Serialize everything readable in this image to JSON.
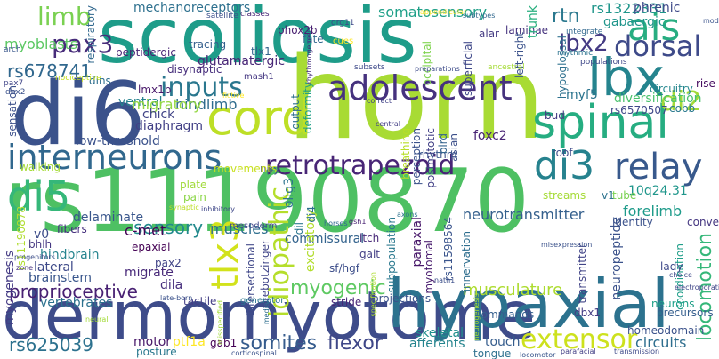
{
  "words": [
    {
      "text": "rs11190870",
      "color": "#4ec063"
    },
    {
      "text": "scoliosis",
      "color": "#1e9c89"
    },
    {
      "text": "horn",
      "color": "#a8db34"
    },
    {
      "text": "dermomyotome",
      "color": "#3e4c8a"
    },
    {
      "text": "hypaxial",
      "color": "#2c728e"
    },
    {
      "text": "di6",
      "color": "#3b528b"
    },
    {
      "text": "interneurons",
      "color": "#31688e"
    },
    {
      "text": "adolescent",
      "color": "#46327e"
    },
    {
      "text": "cord",
      "color": "#bddf26"
    },
    {
      "text": "spinal",
      "color": "#26ad81"
    },
    {
      "text": "lbx",
      "color": "#25848e"
    },
    {
      "text": "ais",
      "color": "#27ad81"
    },
    {
      "text": "relay",
      "color": "#38598c"
    },
    {
      "text": "di5",
      "color": "#35b779"
    },
    {
      "text": "di3",
      "color": "#26828e"
    },
    {
      "text": "retrotrapezoid",
      "color": "#482576"
    },
    {
      "text": "inputs",
      "color": "#2a778e"
    },
    {
      "text": "dorsal",
      "color": "#3e4a89"
    },
    {
      "text": "tlx3",
      "color": "#d2e21b"
    },
    {
      "text": "pax3",
      "color": "#472c7a"
    },
    {
      "text": "limb",
      "color": "#7ad151"
    },
    {
      "text": "idiopathic",
      "color": "#b5de2b"
    },
    {
      "text": "extensor",
      "color": "#cde11d"
    },
    {
      "text": "di2",
      "color": "#a2da37"
    },
    {
      "text": "lbx2",
      "color": "#443a83"
    },
    {
      "text": "myogenic",
      "color": "#5ec962"
    },
    {
      "text": "proprioceptive",
      "color": "#482173"
    },
    {
      "text": "somites",
      "color": "#365c8d"
    },
    {
      "text": "flexor",
      "color": "#3f4788"
    },
    {
      "text": "locomotion",
      "color": "#35b779"
    },
    {
      "text": "rs678741",
      "color": "#31688e"
    },
    {
      "text": "rs625039",
      "color": "#2c718e"
    },
    {
      "text": "sensory",
      "color": "#238a8d"
    },
    {
      "text": "rtn",
      "color": "#2a788e"
    },
    {
      "text": "mechanoreceptors",
      "color": "#2d708e"
    },
    {
      "text": "somatosensory",
      "color": "#1fa088"
    },
    {
      "text": "rs1322331",
      "color": "#1f968b"
    },
    {
      "text": "phrenic",
      "color": "#3e4989"
    },
    {
      "text": "gabaergic",
      "color": "#1f958b"
    },
    {
      "text": "musculature",
      "color": "#addc30"
    },
    {
      "text": "commissural",
      "color": "#33638d"
    },
    {
      "text": "hindlimb",
      "color": "#2f6c8e"
    },
    {
      "text": "neurotransmitter",
      "color": "#35608d"
    },
    {
      "text": "forelimb",
      "color": "#1e9b8a"
    },
    {
      "text": "delaminate",
      "color": "#39568c"
    },
    {
      "text": "c-met",
      "color": "#440154"
    },
    {
      "text": "myoblasts",
      "color": "#5cc863"
    },
    {
      "text": "ventral",
      "color": "#26828e"
    },
    {
      "text": "migratory",
      "color": "#93d741"
    },
    {
      "text": "glutamatergic",
      "color": "#482677"
    },
    {
      "text": "low-threshold",
      "color": "#3b528b"
    },
    {
      "text": "diaphragm",
      "color": "#424086"
    },
    {
      "text": "chick",
      "color": "#414487"
    },
    {
      "text": "muscles",
      "color": "#2e6e8e"
    },
    {
      "text": "lmx1b",
      "color": "#48186a"
    },
    {
      "text": "dins",
      "color": "#2e6f8e"
    },
    {
      "text": "circuits",
      "color": "#2e6e8e"
    },
    {
      "text": "touch",
      "color": "#365d8d"
    },
    {
      "text": "skeletal",
      "color": "#21908d"
    },
    {
      "text": "afferents",
      "color": "#25848e"
    },
    {
      "text": "motor",
      "color": "#481769"
    },
    {
      "text": "posture",
      "color": "#2a788e"
    },
    {
      "text": "ptf1a",
      "color": "#fde725"
    },
    {
      "text": "gab1",
      "color": "#440154"
    },
    {
      "text": "vertebrates",
      "color": "#2c718e"
    },
    {
      "text": "tactile",
      "color": "#433e85"
    },
    {
      "text": "brainstem",
      "color": "#39568c"
    },
    {
      "text": "lateral",
      "color": "#3e4a89"
    },
    {
      "text": "hindbrain",
      "color": "#25848e"
    },
    {
      "text": "bhlh",
      "color": "#453781"
    },
    {
      "text": "v0",
      "color": "#3d4d8a"
    },
    {
      "text": "pax2",
      "color": "#414487"
    },
    {
      "text": "migrate",
      "color": "#482979"
    },
    {
      "text": "dila",
      "color": "#472f7d"
    },
    {
      "text": "epaxial",
      "color": "#440154"
    },
    {
      "text": "projections",
      "color": "#3b528b"
    },
    {
      "text": "commands",
      "color": "#355f8d"
    },
    {
      "text": "neurons",
      "color": "#1fa088"
    },
    {
      "text": "precursors",
      "color": "#355e8d"
    },
    {
      "text": "dbx1",
      "color": "#433d84"
    },
    {
      "text": "homeodomain",
      "color": "#3b528b"
    },
    {
      "text": "tongue",
      "color": "#2d708e"
    },
    {
      "text": "stride",
      "color": "#482677"
    },
    {
      "text": "transmitter",
      "color": "#414487"
    },
    {
      "text": "neuropeptide",
      "color": "#3b528b"
    },
    {
      "text": "coordination",
      "color": "#1f9e89"
    },
    {
      "text": "lady",
      "color": "#3e4989"
    },
    {
      "text": "identity",
      "color": "#3b528b"
    },
    {
      "text": "convey",
      "color": "#453781"
    },
    {
      "text": "10q24.31",
      "color": "#1f968b"
    },
    {
      "text": "v1",
      "color": "#2c728e"
    },
    {
      "text": "tube",
      "color": "#7ad151"
    },
    {
      "text": "cobb",
      "color": "#29798e"
    },
    {
      "text": "rs6570507",
      "color": "#3f4889"
    },
    {
      "text": "diversification",
      "color": "#4ac16d"
    },
    {
      "text": "circuitry",
      "color": "#24878e"
    },
    {
      "text": "myf5",
      "color": "#2b748e"
    },
    {
      "text": "bud",
      "color": "#443983"
    },
    {
      "text": "foxc2",
      "color": "#482475"
    },
    {
      "text": "rhythm",
      "color": "#3a548c"
    },
    {
      "text": "gait",
      "color": "#433e85"
    },
    {
      "text": "itch",
      "color": "#482878"
    },
    {
      "text": "olig3",
      "color": "#2c738e"
    },
    {
      "text": "sf/hgf",
      "color": "#3d4e8a"
    },
    {
      "text": "excitatory",
      "color": "#b2dd2d"
    },
    {
      "text": "di4",
      "color": "#2d718e"
    },
    {
      "text": "dil",
      "color": "#2a768e"
    },
    {
      "text": "prebotzinger",
      "color": "#404588"
    },
    {
      "text": "intersectional",
      "color": "#3f4788"
    },
    {
      "text": "generator",
      "color": "#2b758e"
    },
    {
      "text": "mesoderm",
      "color": "#3f4889"
    },
    {
      "text": "fibers",
      "color": "#46307e"
    },
    {
      "text": "myogenesis",
      "color": "#443b84"
    },
    {
      "text": "rs11190878",
      "color": "#b0dd2f"
    },
    {
      "text": "rs11598564",
      "color": "#3a548c"
    },
    {
      "text": "npy",
      "color": "#3e4989"
    },
    {
      "text": "movements",
      "color": "#c8e020"
    },
    {
      "text": "plate",
      "color": "#a0da39"
    },
    {
      "text": "pain",
      "color": "#8bd646"
    },
    {
      "text": "walking",
      "color": "#a5db36"
    },
    {
      "text": "sensation",
      "color": "#3c508b"
    },
    {
      "text": "output",
      "color": "#2e6f8e"
    },
    {
      "text": "deformity",
      "color": "#1fa187"
    },
    {
      "text": "disynaptic",
      "color": "#472e7c"
    },
    {
      "text": "peptidergic",
      "color": "#482475"
    },
    {
      "text": "tracing",
      "color": "#355f8d"
    },
    {
      "text": "tlx1",
      "color": "#33638d"
    },
    {
      "text": "phox2b",
      "color": "#481f70"
    },
    {
      "text": "fate",
      "color": "#31688e"
    },
    {
      "text": "alar",
      "color": "#443a83"
    },
    {
      "text": "laminae",
      "color": "#46337e"
    },
    {
      "text": "trunk",
      "color": "#29af7f"
    },
    {
      "text": "occipital",
      "color": "#7fd34e"
    },
    {
      "text": "superficial",
      "color": "#3f4889"
    },
    {
      "text": "left-right",
      "color": "#3b528b"
    },
    {
      "text": "hypoglossal",
      "color": "#2d708e"
    },
    {
      "text": "breathing",
      "color": "#b8de29"
    },
    {
      "text": "perception",
      "color": "#3b528b"
    },
    {
      "text": "postmitotic",
      "color": "#424086"
    },
    {
      "text": "bird",
      "color": "#33638d"
    },
    {
      "text": "asian",
      "color": "#3c4f8a"
    },
    {
      "text": "roof",
      "color": "#3e4c8a"
    },
    {
      "text": "streams",
      "color": "#a5db36"
    },
    {
      "text": "subpopulation",
      "color": "#2a788e"
    },
    {
      "text": "paraxial",
      "color": "#48186a"
    },
    {
      "text": "myotomal",
      "color": "#481b6d"
    },
    {
      "text": "innervation",
      "color": "#2e6e8e"
    },
    {
      "text": "mash1",
      "color": "#453882"
    },
    {
      "text": "rise",
      "color": "#470e61"
    },
    {
      "text": "respiratory",
      "color": "#31688e"
    },
    {
      "text": "satellite",
      "color": "#3c508b"
    },
    {
      "text": "classes",
      "color": "#482576"
    },
    {
      "text": "drg11",
      "color": "#3e4989"
    },
    {
      "text": "cues",
      "color": "#fde725"
    },
    {
      "text": "arch",
      "color": "#39568c"
    },
    {
      "text": "pax7",
      "color": "#404588"
    },
    {
      "text": "dbx2",
      "color": "#3b518b"
    },
    {
      "text": "nociceptive",
      "color": "#c5e021"
    },
    {
      "text": "subsets",
      "color": "#3e4989"
    },
    {
      "text": "integrate",
      "color": "#31688e"
    },
    {
      "text": "populations",
      "color": "#3f4889"
    },
    {
      "text": "rhythmic",
      "color": "#2c738e"
    },
    {
      "text": "mod",
      "color": "#3a538b"
    },
    {
      "text": "ancestral",
      "color": "#a5db36"
    },
    {
      "text": "preparations",
      "color": "#3e4c8a"
    },
    {
      "text": "correct",
      "color": "#414287"
    },
    {
      "text": "fictive",
      "color": "#fde725"
    },
    {
      "text": "inhibitory",
      "color": "#3f4788"
    },
    {
      "text": "synaptic",
      "color": "#bddf26"
    },
    {
      "text": "gsh1",
      "color": "#482173"
    },
    {
      "text": "horses",
      "color": "#31688e"
    },
    {
      "text": "axons",
      "color": "#2c728e"
    },
    {
      "text": "central",
      "color": "#433e85"
    },
    {
      "text": "nath1",
      "color": "#3c4f8a"
    },
    {
      "text": "specification",
      "color": "#addc30"
    },
    {
      "text": "misexpression",
      "color": "#3b528b"
    },
    {
      "text": "choice",
      "color": "#3e4989"
    },
    {
      "text": "electroporation",
      "color": "#404688"
    },
    {
      "text": "zone",
      "color": "#46307e"
    },
    {
      "text": "progenitors",
      "color": "#3d4e8a"
    },
    {
      "text": "late-born",
      "color": "#3b528b"
    },
    {
      "text": "neural",
      "color": "#a2da37"
    },
    {
      "text": "corticospinal",
      "color": "#3b528b"
    },
    {
      "text": "parafacial",
      "color": "#423f85"
    },
    {
      "text": "transmission",
      "color": "#3e4a89"
    },
    {
      "text": "locomotor",
      "color": "#39568c"
    },
    {
      "text": "misspecified",
      "color": "#a2da37"
    },
    {
      "text": "medial",
      "color": "#2e6e8e"
    },
    {
      "text": "appendicular",
      "color": "#fde725"
    },
    {
      "text": "subtypes",
      "color": "#31688e"
    },
    {
      "text": "rhythmogenesis",
      "color": "#46307e"
    },
    {
      "text": "neurogenesis",
      "color": "#a2da37"
    }
  ]
}
